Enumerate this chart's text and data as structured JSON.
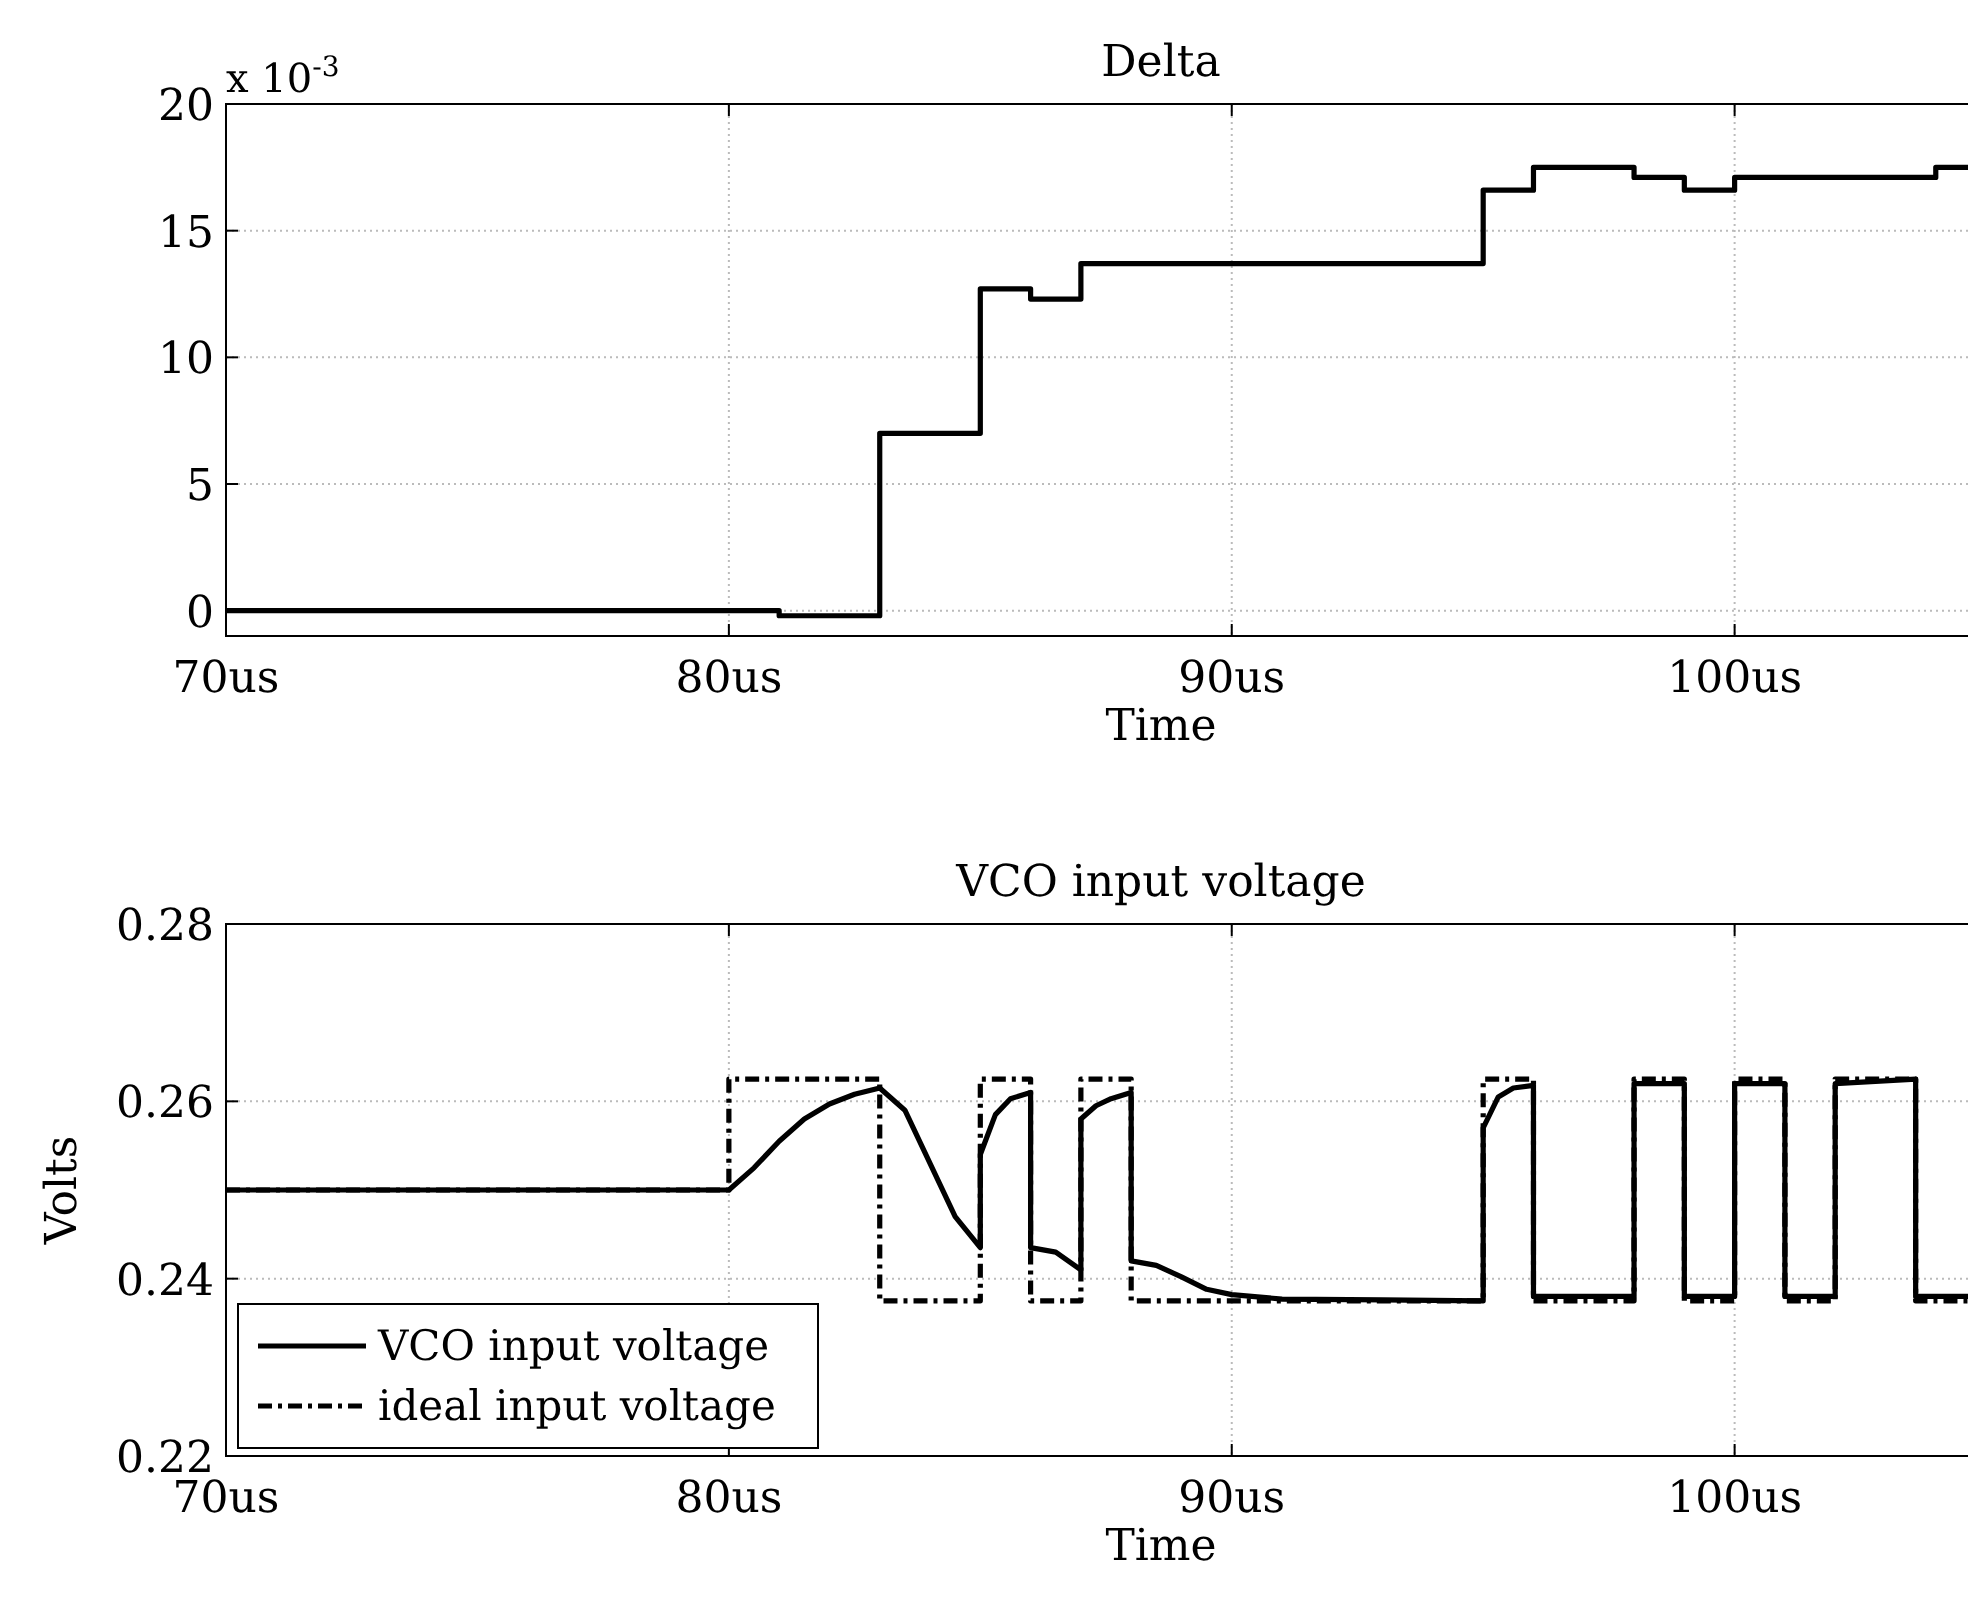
{
  "chart_data": [
    {
      "type": "step",
      "title": "Delta",
      "xlabel": "Time",
      "annotations": [
        "x 10$^{-3}$"
      ],
      "grid": true,
      "xlim": [
        70,
        104.8
      ],
      "ylim": [
        -1,
        20
      ],
      "xticks": [
        {
          "value": 70,
          "label": "70us"
        },
        {
          "value": 80,
          "label": "80us"
        },
        {
          "value": 90,
          "label": "90us"
        },
        {
          "value": 100,
          "label": "100us"
        }
      ],
      "yticks": [
        0,
        5,
        10,
        15,
        20
      ],
      "series": [
        {
          "color": "#000000",
          "x": [
            70,
            81,
            83,
            85,
            86,
            87,
            95,
            96,
            98,
            99,
            100,
            104,
            104.8
          ],
          "values": [
            0,
            -0.2,
            7,
            12.7,
            12.3,
            13.7,
            16.6,
            17.5,
            17.1,
            16.6,
            17.1,
            17.5,
            17.5
          ]
        }
      ]
    },
    {
      "type": "line",
      "title": "VCO input voltage",
      "xlabel": "Time",
      "ylabel": "Volts",
      "grid": true,
      "legend": "bottom left",
      "xlim": [
        70,
        104.8
      ],
      "ylim": [
        0.22,
        0.28
      ],
      "xticks": [
        {
          "value": 70,
          "label": "70us"
        },
        {
          "value": 80,
          "label": "80us"
        },
        {
          "value": 90,
          "label": "90us"
        },
        {
          "value": 100,
          "label": "100us"
        }
      ],
      "yticks": [
        0.22,
        0.24,
        0.26,
        0.28
      ],
      "series": [
        {
          "name": "VCO input voltage",
          "color": "#000000",
          "line_style": "solid",
          "x": [
            70,
            80,
            80.5,
            81,
            81.5,
            82,
            82.5,
            83,
            83.5,
            84,
            84.5,
            85,
            85,
            85.3,
            85.6,
            86,
            86,
            86.5,
            87,
            87,
            87.3,
            87.6,
            88,
            88,
            88.5,
            89,
            89.5,
            90,
            91,
            93,
            95,
            95,
            95.3,
            95.6,
            96,
            96,
            98,
            98,
            99,
            99,
            100,
            100,
            101,
            101,
            102,
            102,
            103.6,
            103.6,
            104.8
          ],
          "values": [
            0.25,
            0.25,
            0.2525,
            0.2555,
            0.258,
            0.2597,
            0.2608,
            0.2615,
            0.259,
            0.253,
            0.247,
            0.2435,
            0.254,
            0.2585,
            0.2603,
            0.261,
            0.2435,
            0.243,
            0.241,
            0.258,
            0.2595,
            0.2603,
            0.261,
            0.242,
            0.2415,
            0.2402,
            0.2388,
            0.2382,
            0.2377,
            0.2376,
            0.2375,
            0.257,
            0.2605,
            0.2615,
            0.2618,
            0.238,
            0.238,
            0.262,
            0.262,
            0.238,
            0.238,
            0.262,
            0.262,
            0.238,
            0.238,
            0.262,
            0.2625,
            0.238,
            0.238
          ]
        },
        {
          "name": "ideal input voltage",
          "color": "#000000",
          "line_style": "dashed",
          "x": [
            70,
            80,
            80,
            83,
            83,
            85,
            85,
            86,
            86,
            87,
            87,
            88,
            88,
            95,
            95,
            96,
            96,
            98,
            98,
            99,
            99,
            100,
            100,
            101,
            101,
            102,
            102,
            103.6,
            103.6,
            104.8
          ],
          "values": [
            0.25,
            0.25,
            0.2625,
            0.2625,
            0.2375,
            0.2375,
            0.2625,
            0.2625,
            0.2375,
            0.2375,
            0.2625,
            0.2625,
            0.2375,
            0.2375,
            0.2625,
            0.2625,
            0.2375,
            0.2375,
            0.2625,
            0.2625,
            0.2375,
            0.2375,
            0.2625,
            0.2625,
            0.2375,
            0.2375,
            0.2625,
            0.2625,
            0.2375,
            0.2375
          ]
        }
      ]
    }
  ]
}
